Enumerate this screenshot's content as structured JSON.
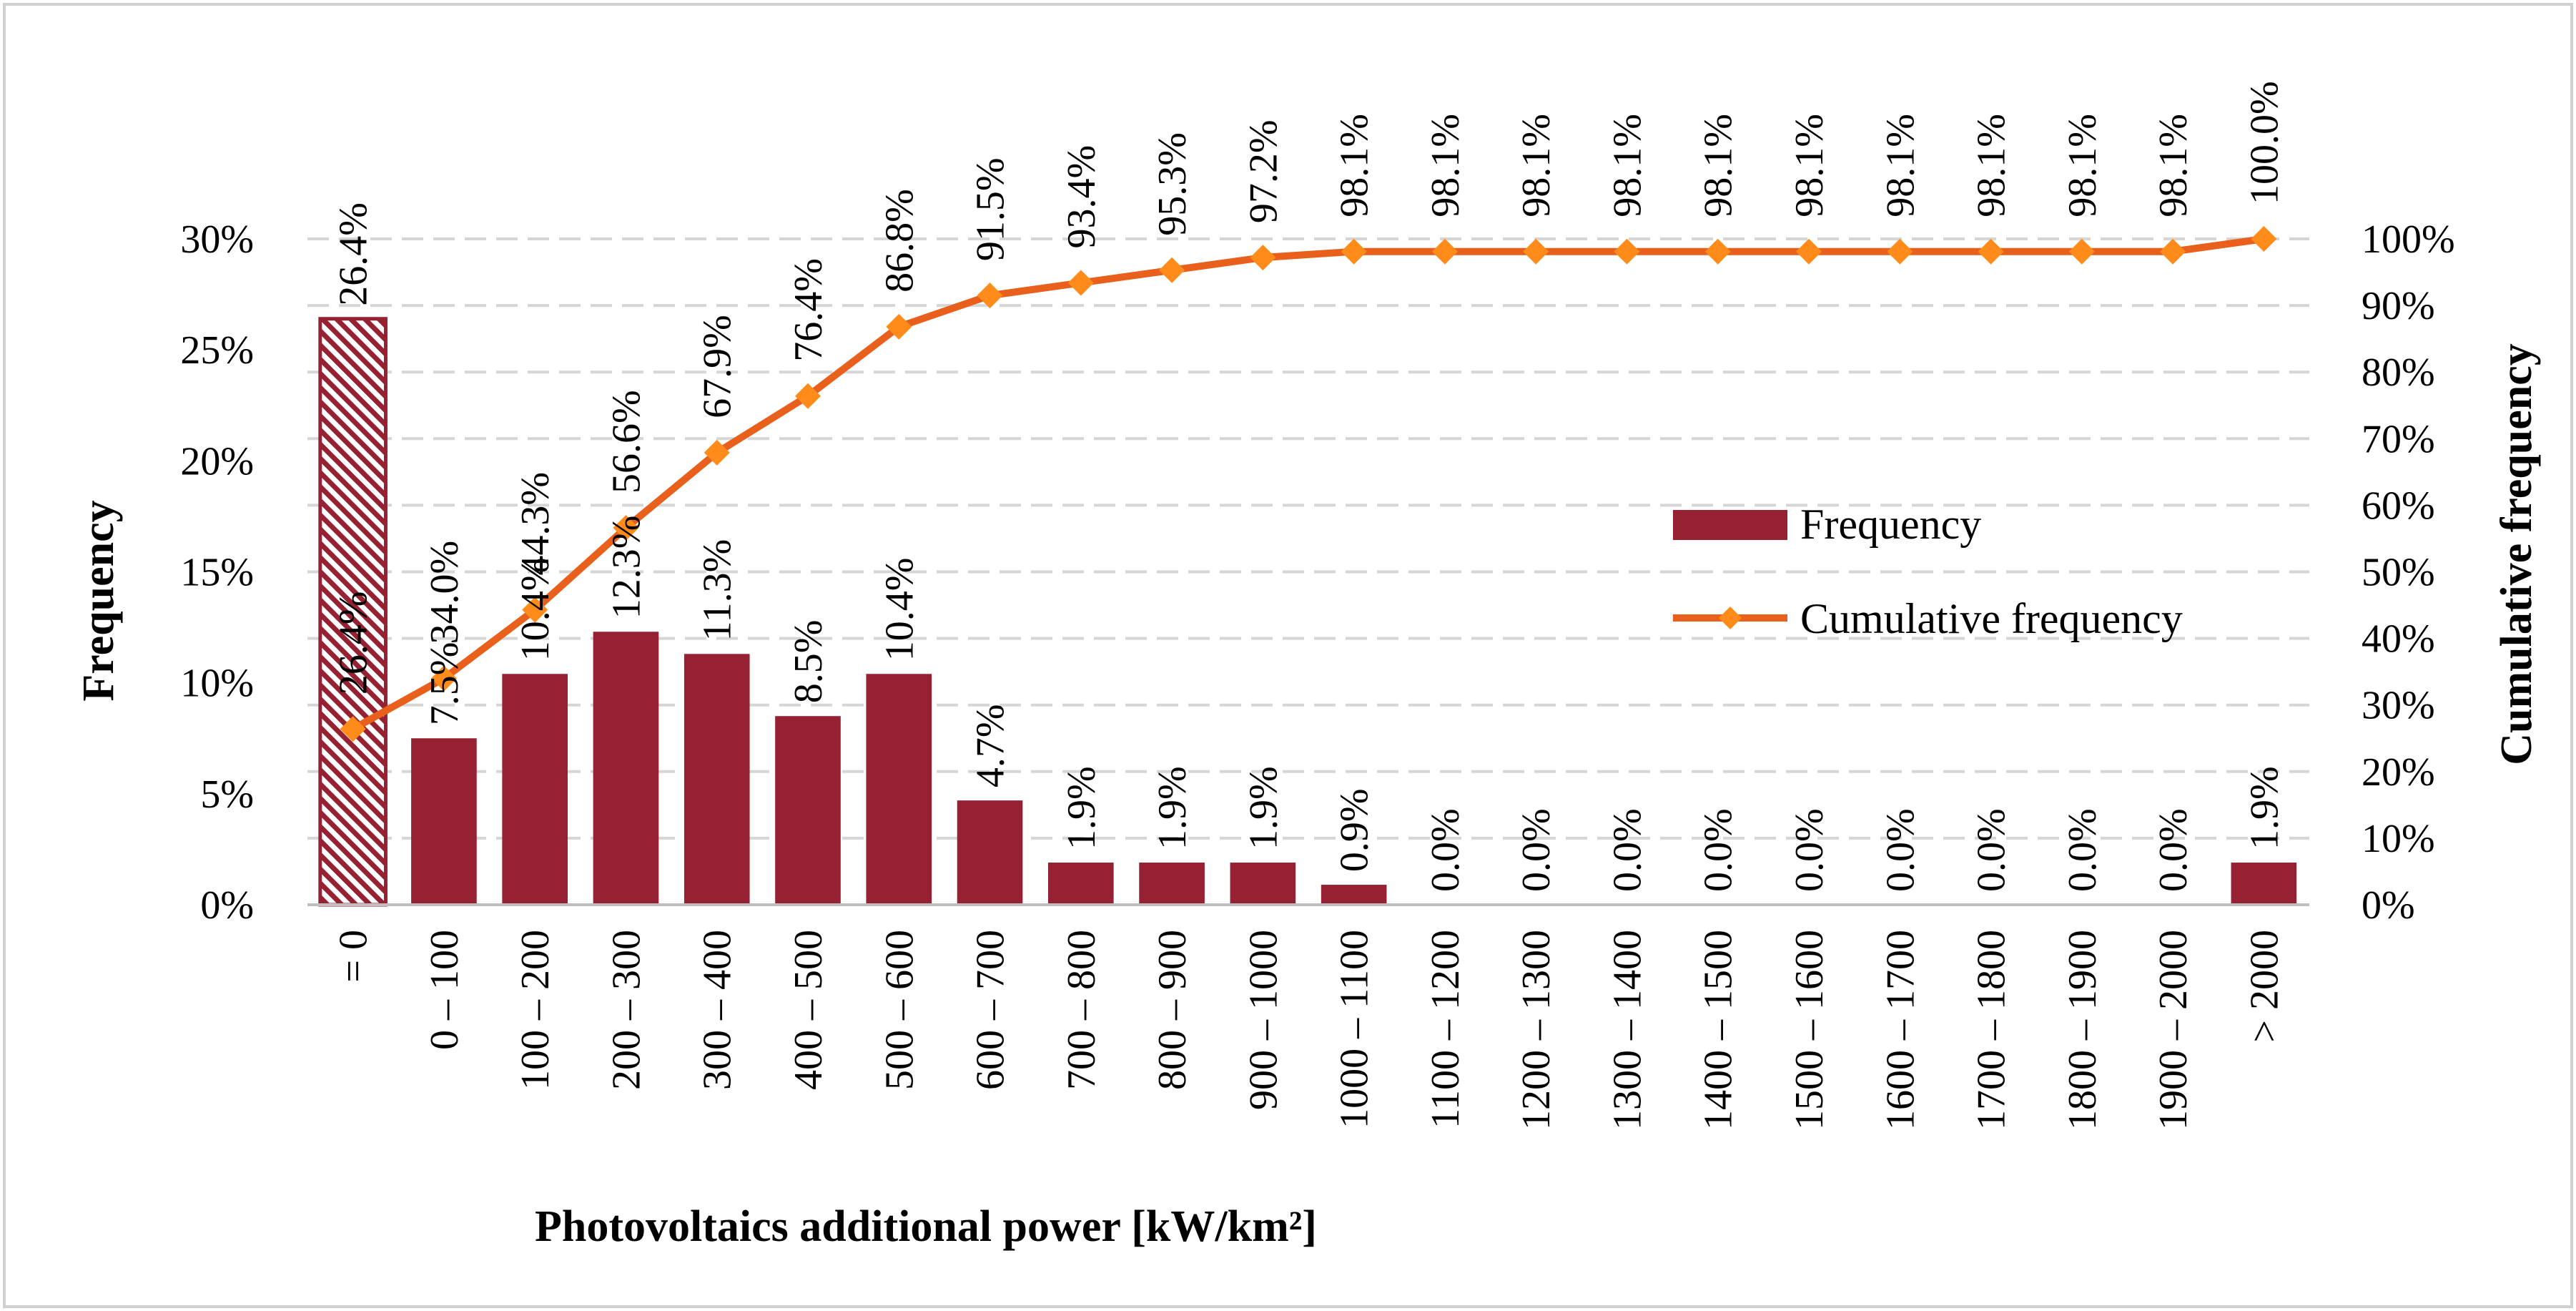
{
  "chart_data": {
    "type": "bar",
    "categories": [
      "= 0",
      "0 – 100",
      "100 – 200",
      "200 – 300",
      "300 – 400",
      "400 – 500",
      "500 – 600",
      "600 – 700",
      "700 – 800",
      "800 – 900",
      "900 – 1000",
      "1000 – 1100",
      "1100 – 1200",
      "1200 – 1300",
      "1300 – 1400",
      "1400 – 1500",
      "1500 – 1600",
      "1600 – 1700",
      "1700 – 1800",
      "1800 – 1900",
      "1900 – 2000",
      "> 2000"
    ],
    "series": [
      {
        "name": "Frequency",
        "type": "bar",
        "axis": "left",
        "color": "#962133",
        "values": [
          26.4,
          7.5,
          10.4,
          12.3,
          11.3,
          8.5,
          10.4,
          4.7,
          1.9,
          1.9,
          1.9,
          0.9,
          0.0,
          0.0,
          0.0,
          0.0,
          0.0,
          0.0,
          0.0,
          0.0,
          0.0,
          1.9
        ],
        "labels": [
          "26.4%",
          "7.5%",
          "10.4%",
          "12.3%",
          "11.3%",
          "8.5%",
          "10.4%",
          "4.7%",
          "1.9%",
          "1.9%",
          "1.9%",
          "0.9%",
          "0.0%",
          "0.0%",
          "0.0%",
          "0.0%",
          "0.0%",
          "0.0%",
          "0.0%",
          "0.0%",
          "0.0%",
          "1.9%"
        ]
      },
      {
        "name": "Cumulative frequency",
        "type": "line",
        "axis": "right",
        "color": "#e8601c",
        "values": [
          26.4,
          34.0,
          44.3,
          56.6,
          67.9,
          76.4,
          86.8,
          91.5,
          93.4,
          95.3,
          97.2,
          98.1,
          98.1,
          98.1,
          98.1,
          98.1,
          98.1,
          98.1,
          98.1,
          98.1,
          98.1,
          100.0
        ],
        "labels": [
          "26.4%",
          "34.0%",
          "44.3%",
          "56.6%",
          "67.9%",
          "76.4%",
          "86.8%",
          "91.5%",
          "93.4%",
          "95.3%",
          "97.2%",
          "98.1%",
          "98.1%",
          "98.1%",
          "98.1%",
          "98.1%",
          "98.1%",
          "98.1%",
          "98.1%",
          "98.1%",
          "98.1%",
          "100.0%"
        ]
      }
    ],
    "xlabel": "Photovoltaics additional power [kW/km²]",
    "ylabel": "Frequency",
    "y2label": "Cumulative frequency",
    "ylim": [
      0,
      30
    ],
    "y2lim": [
      0,
      100
    ],
    "yticks": [
      "0%",
      "5%",
      "10%",
      "15%",
      "20%",
      "25%",
      "30%"
    ],
    "y2ticks": [
      "0%",
      "10%",
      "20%",
      "30%",
      "40%",
      "50%",
      "60%",
      "70%",
      "80%",
      "90%",
      "100%"
    ],
    "highlighted_category": "= 0",
    "highlight_pattern": "hatched",
    "legend": {
      "position": "center-right",
      "entries": [
        "Frequency",
        "Cumulative frequency"
      ]
    },
    "grid": true
  }
}
